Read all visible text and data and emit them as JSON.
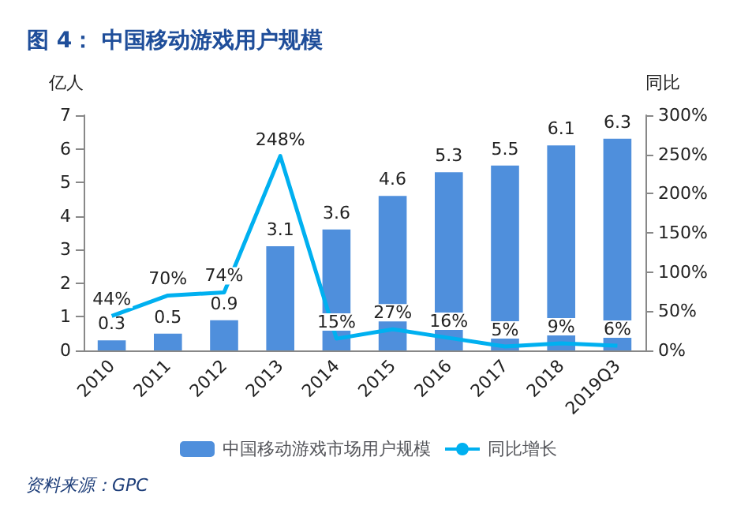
{
  "chart_data": {
    "type": "bar",
    "title": "图 4： 中国移动游戏用户规模",
    "ylabel": "亿人",
    "y2label": "同比",
    "categories": [
      "2010",
      "2011",
      "2012",
      "2013",
      "2014",
      "2015",
      "2016",
      "2017",
      "2018",
      "2019Q3"
    ],
    "series": [
      {
        "name": "中国移动游戏市场用户规模",
        "color": "#4f8fdc",
        "values": [
          0.3,
          0.5,
          0.9,
          3.1,
          3.6,
          4.6,
          5.3,
          5.5,
          6.1,
          6.3
        ],
        "value_labels": [
          "0.3",
          "0.5",
          "0.9",
          "3.1",
          "3.6",
          "4.6",
          "5.3",
          "5.5",
          "6.1",
          "6.3"
        ]
      },
      {
        "name": "同比增长",
        "type": "line",
        "axis": "y2",
        "color": "#00b0f0",
        "values": [
          44,
          70,
          74,
          248,
          15,
          27,
          16,
          5,
          9,
          6
        ],
        "value_labels": [
          "44%",
          "70%",
          "74%",
          "248%",
          "15%",
          "27%",
          "16%",
          "5%",
          "9%",
          "6%"
        ]
      }
    ],
    "ylim": [
      0,
      7
    ],
    "yticks": [
      0,
      1,
      2,
      3,
      4,
      5,
      6,
      7
    ],
    "y2lim": [
      0,
      300
    ],
    "y2ticks": [
      {
        "value": 0,
        "label": "0%"
      },
      {
        "value": 50,
        "label": "50%"
      },
      {
        "value": 100,
        "label": "100%"
      },
      {
        "value": 150,
        "label": "150%"
      },
      {
        "value": 200,
        "label": "200%"
      },
      {
        "value": 250,
        "label": "250%"
      },
      {
        "value": 300,
        "label": "300%"
      }
    ],
    "legend": "bottom",
    "grid": false,
    "marker": "none",
    "annotations": [
      "资料来源：GPC"
    ]
  }
}
